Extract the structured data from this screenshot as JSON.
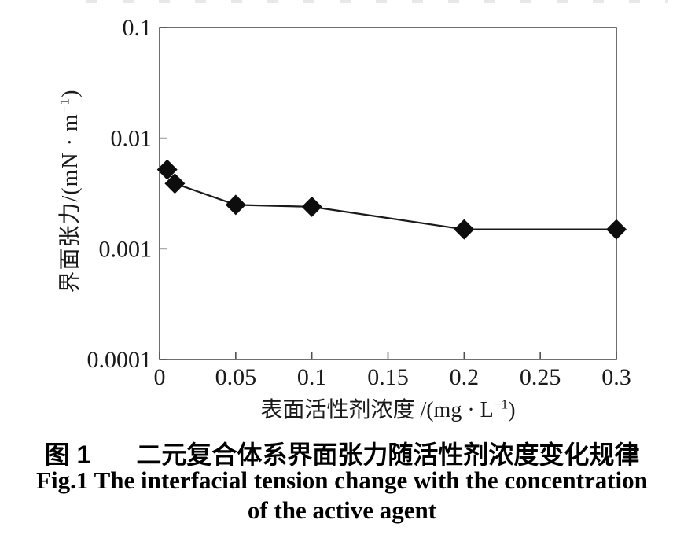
{
  "chart_data": {
    "type": "line",
    "x": [
      0.005,
      0.01,
      0.05,
      0.1,
      0.2,
      0.3
    ],
    "y": [
      0.0052,
      0.0039,
      0.0025,
      0.0024,
      0.0015,
      0.0015
    ],
    "series_name": "interfacial-tension",
    "marker": "diamond",
    "x_scale": "linear",
    "y_scale": "log",
    "xlim": [
      0,
      0.3
    ],
    "ylim": [
      0.0001,
      0.1
    ],
    "x_ticks": [
      0,
      0.05,
      0.1,
      0.15,
      0.2,
      0.25,
      0.3
    ],
    "x_tick_labels": [
      "0",
      "0.05",
      "0.1",
      "0.15",
      "0.2",
      "0.25",
      "0.3"
    ],
    "y_ticks": [
      0.1,
      0.01,
      0.001,
      0.0001
    ],
    "y_tick_labels": [
      "0.1",
      "0.01",
      "0.001",
      "0.0001"
    ],
    "xlabel_main": "表面活性剂浓度 /(mg · L",
    "xlabel_sup": "−1",
    "xlabel_close": ")",
    "ylabel_main": "界面张力/(mN · m",
    "ylabel_sup": "−1",
    "ylabel_close": ")",
    "grid": false,
    "legend": "none",
    "line_color": "#1a1a1a",
    "marker_color": "#0d0d0d",
    "axis_color": "#4d4d4d",
    "tick_label_color": "#1a1a1a"
  },
  "caption": {
    "cn_label": "图 1",
    "cn_text": "二元复合体系界面张力随活性剂浓度变化规律",
    "en_line1": "Fig.1 The interfacial tension change with the concentration",
    "en_line2": "of the active agent"
  }
}
